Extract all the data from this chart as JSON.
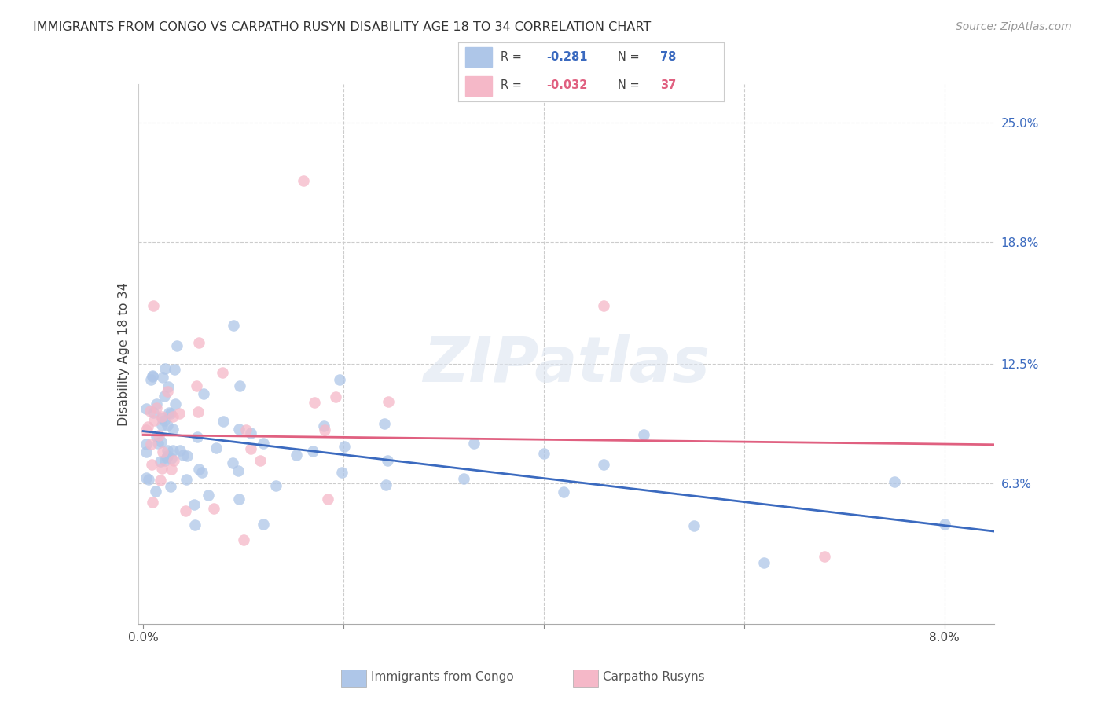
{
  "title": "IMMIGRANTS FROM CONGO VS CARPATHO RUSYN DISABILITY AGE 18 TO 34 CORRELATION CHART",
  "source": "Source: ZipAtlas.com",
  "ylabel": "Disability Age 18 to 34",
  "xlim": [
    -0.0005,
    0.085
  ],
  "ylim": [
    -0.01,
    0.27
  ],
  "congo_R": -0.281,
  "congo_N": 78,
  "rusyn_R": -0.032,
  "rusyn_N": 37,
  "congo_color": "#aec6e8",
  "rusyn_color": "#f5b8c8",
  "congo_line_color": "#3b6abf",
  "rusyn_line_color": "#e06080",
  "y_ticks": [
    0.063,
    0.125,
    0.188,
    0.25
  ],
  "y_tick_labels": [
    "6.3%",
    "12.5%",
    "18.8%",
    "25.0%"
  ],
  "x_ticks": [
    0.0,
    0.02,
    0.04,
    0.06,
    0.08
  ],
  "x_tick_labels": [
    "0.0%",
    "",
    "",
    "",
    "8.0%"
  ],
  "congo_line_x0": 0.0,
  "congo_line_y0": 0.09,
  "congo_line_x1": 0.085,
  "congo_line_y1": 0.038,
  "rusyn_line_x0": 0.0,
  "rusyn_line_y0": 0.088,
  "rusyn_line_x1": 0.085,
  "rusyn_line_y1": 0.083
}
